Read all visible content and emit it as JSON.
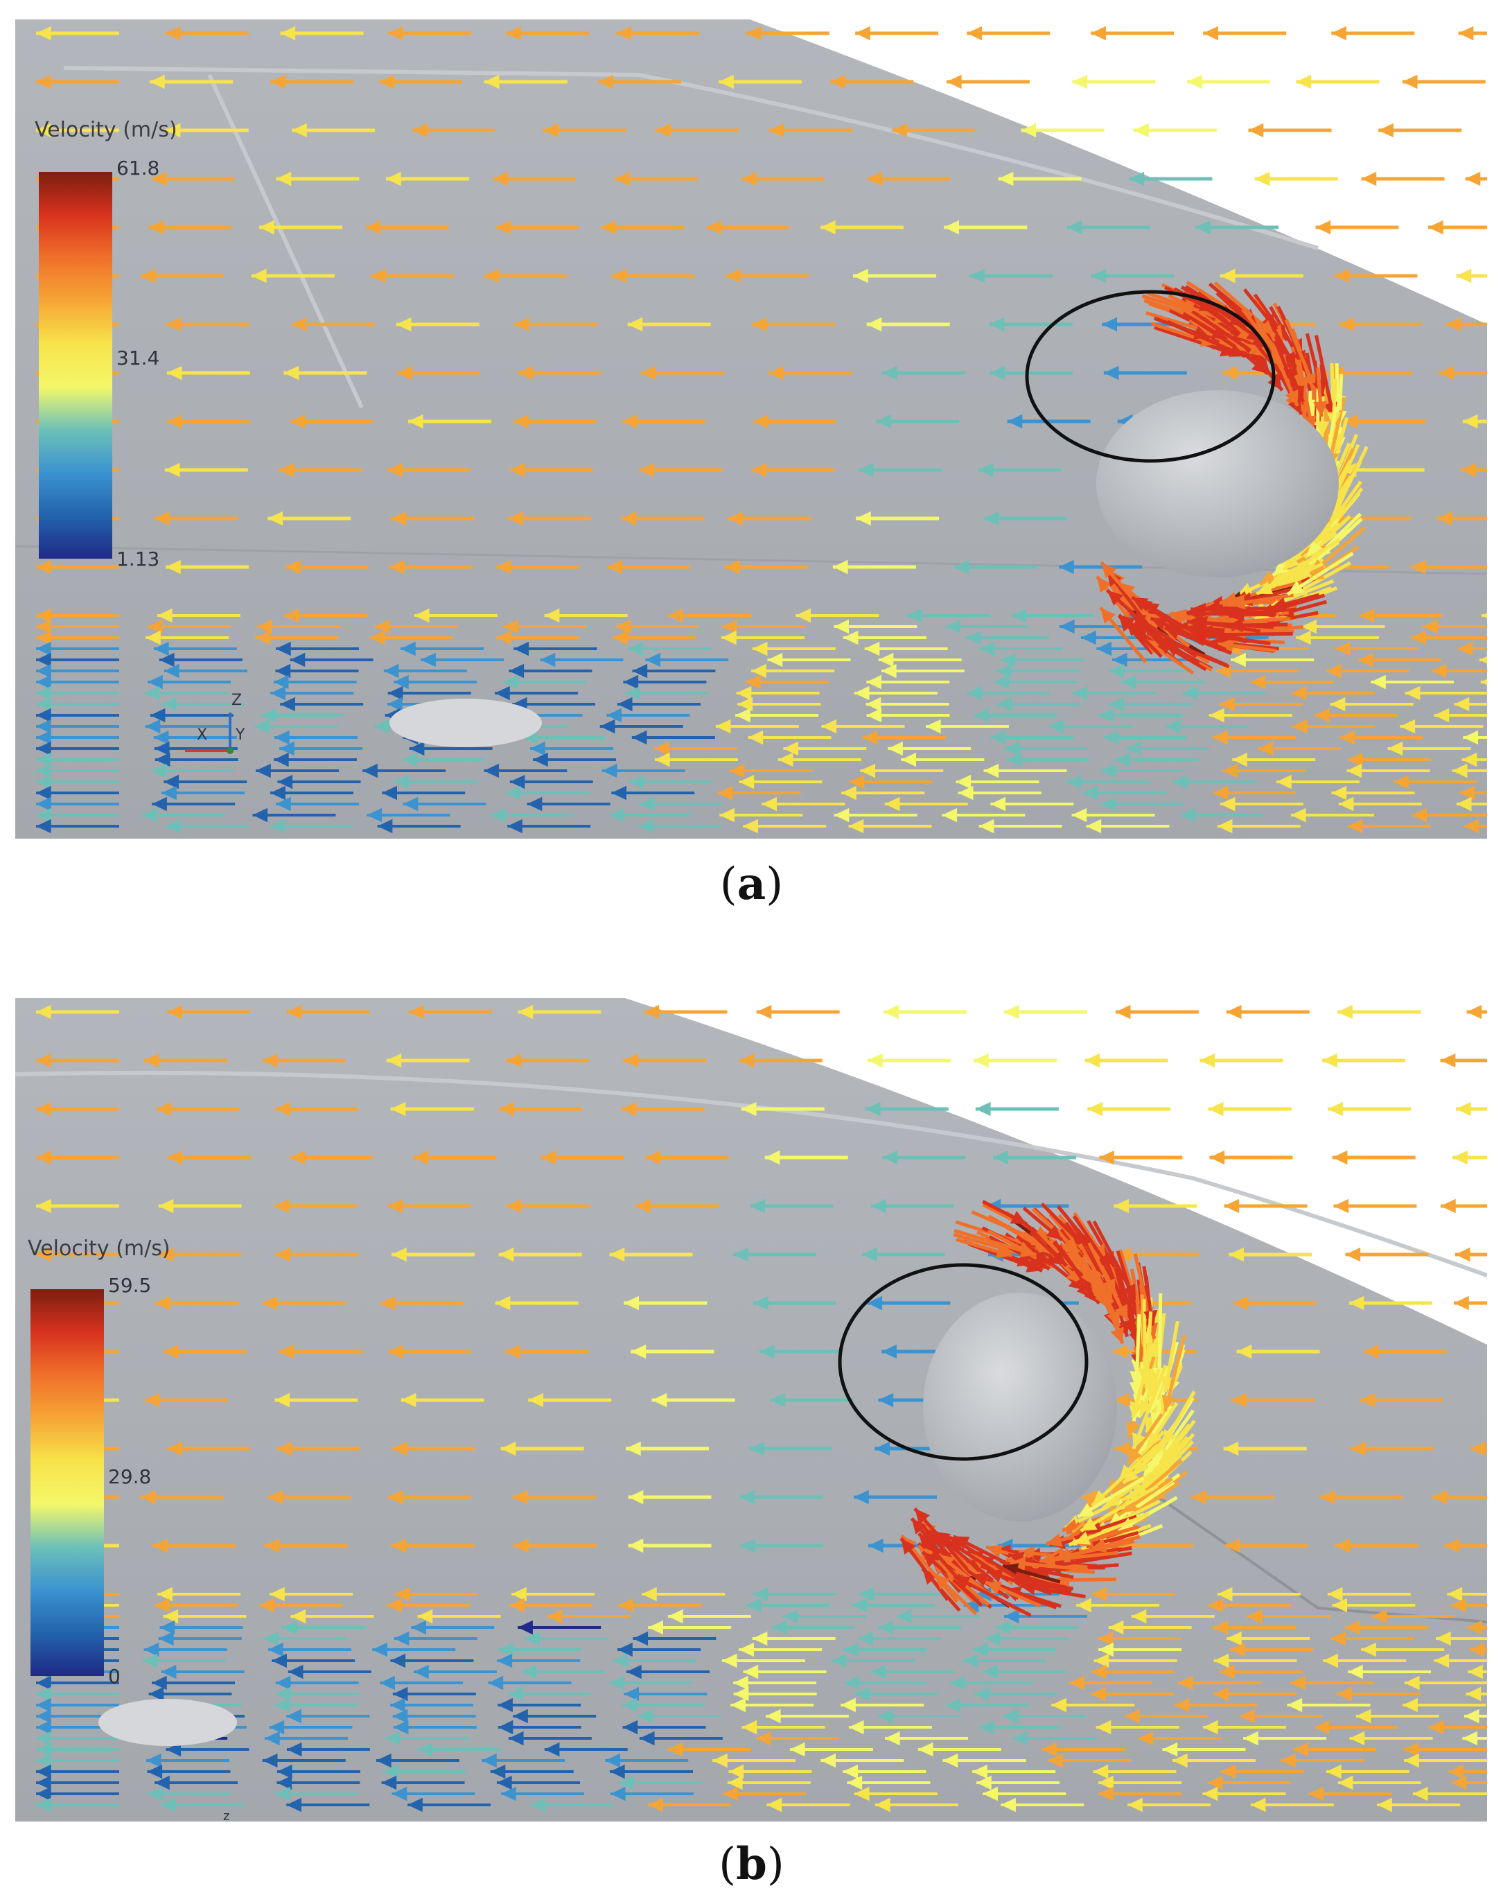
{
  "panels": [
    {
      "id": "a",
      "legend": {
        "title": "Velocity (m/s)",
        "max": "61.8",
        "mid": "31.4",
        "min": "1.13"
      },
      "axes": {
        "x": "X",
        "y": "Y",
        "z": "Z"
      },
      "caption": {
        "open": "(",
        "letter": "a",
        "close": ")"
      }
    },
    {
      "id": "b",
      "legend": {
        "title": "Velocity (m/s)",
        "max": "59.5",
        "mid": "29.8",
        "min": "0"
      },
      "axes": {
        "z": "z"
      },
      "caption": {
        "open": "(",
        "letter": "b",
        "close": ")"
      }
    }
  ],
  "colormap": [
    "#7b1e10",
    "#d8321e",
    "#f0702a",
    "#f6a535",
    "#f7e34a",
    "#f4f76a",
    "#6cc0b8",
    "#3b93d0",
    "#2363ad",
    "#1f2a86"
  ],
  "colors": {
    "body_surface": "#a9adb2",
    "background": "#ffffff",
    "annotation_ring": "#111111"
  }
}
